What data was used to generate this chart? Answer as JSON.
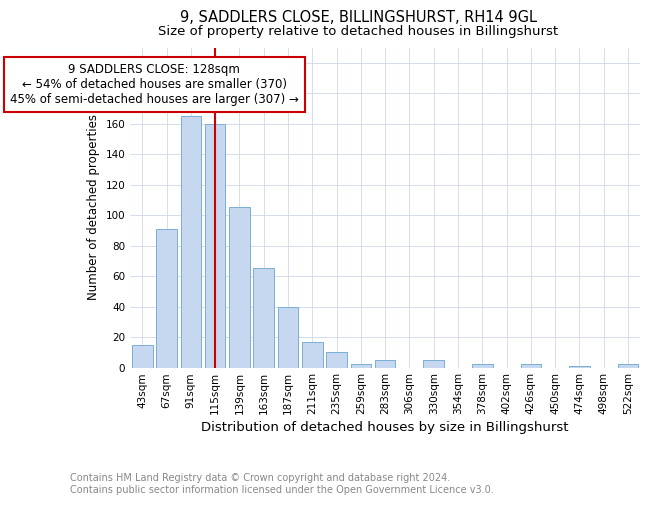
{
  "title": "9, SADDLERS CLOSE, BILLINGSHURST, RH14 9GL",
  "subtitle": "Size of property relative to detached houses in Billingshurst",
  "xlabel": "Distribution of detached houses by size in Billingshurst",
  "ylabel": "Number of detached properties",
  "categories": [
    "43sqm",
    "67sqm",
    "91sqm",
    "115sqm",
    "139sqm",
    "163sqm",
    "187sqm",
    "211sqm",
    "235sqm",
    "259sqm",
    "283sqm",
    "306sqm",
    "330sqm",
    "354sqm",
    "378sqm",
    "402sqm",
    "426sqm",
    "450sqm",
    "474sqm",
    "498sqm",
    "522sqm"
  ],
  "values": [
    15,
    91,
    165,
    160,
    105,
    65,
    40,
    17,
    10,
    2,
    5,
    0,
    5,
    0,
    2,
    0,
    2,
    0,
    1,
    0,
    2
  ],
  "bar_color": "#c5d8f0",
  "bar_edge_color": "#7bafd4",
  "vline_x_index": 3,
  "vline_color": "#cc0000",
  "annotation_line1": "9 SADDLERS CLOSE: 128sqm",
  "annotation_line2": "← 54% of detached houses are smaller (370)",
  "annotation_line3": "45% of semi-detached houses are larger (307) →",
  "annotation_box_color": "#ffffff",
  "annotation_box_edge_color": "#cc0000",
  "ylim": [
    0,
    210
  ],
  "yticks": [
    0,
    20,
    40,
    60,
    80,
    100,
    120,
    140,
    160,
    180,
    200
  ],
  "footnote": "Contains HM Land Registry data © Crown copyright and database right 2024.\nContains public sector information licensed under the Open Government Licence v3.0.",
  "background_color": "#ffffff",
  "grid_color": "#d0d8e8",
  "title_fontsize": 10.5,
  "subtitle_fontsize": 9.5,
  "xlabel_fontsize": 9.5,
  "ylabel_fontsize": 8.5,
  "tick_fontsize": 7.5,
  "annotation_fontsize": 8.5,
  "footnote_fontsize": 7.0
}
